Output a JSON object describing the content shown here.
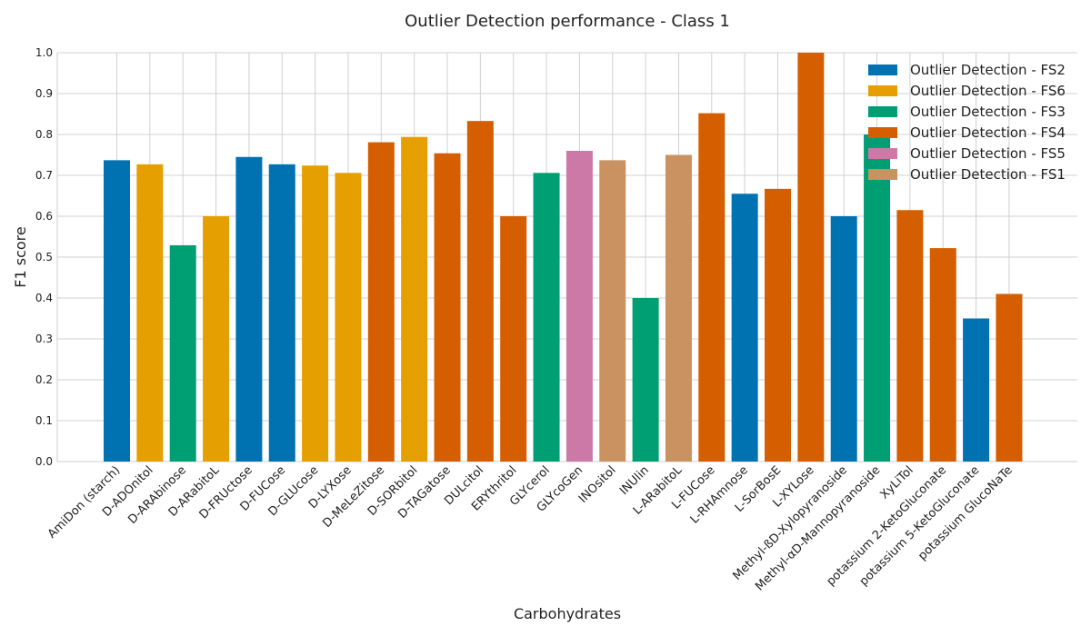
{
  "chart_data": {
    "type": "bar",
    "title": "Outlier Detection performance - Class 1",
    "xlabel": "Carbohydrates",
    "ylabel": "F1 score",
    "ylim": [
      0,
      1.0
    ],
    "yticks": [
      "0.0",
      "0.1",
      "0.2",
      "0.3",
      "0.4",
      "0.5",
      "0.6",
      "0.7",
      "0.8",
      "0.9",
      "1.0"
    ],
    "grid": true,
    "legend_position": "top-right",
    "legend": [
      {
        "name": "Outlier Detection - FS2",
        "color": "#0072B2"
      },
      {
        "name": "Outlier Detection - FS6",
        "color": "#E69F00"
      },
      {
        "name": "Outlier Detection - FS3",
        "color": "#009E73"
      },
      {
        "name": "Outlier Detection - FS4",
        "color": "#D55E00"
      },
      {
        "name": "Outlier Detection - FS5",
        "color": "#CC79A7"
      },
      {
        "name": "Outlier Detection - FS1",
        "color": "#CA9161"
      }
    ],
    "bars": [
      {
        "category": "AmiDon (starch)",
        "value": 0.737,
        "series": 0
      },
      {
        "category": "D-ADOnitol",
        "value": 0.727,
        "series": 1
      },
      {
        "category": "D-ARAbinose",
        "value": 0.529,
        "series": 2
      },
      {
        "category": "D-ARabitoL",
        "value": 0.6,
        "series": 1
      },
      {
        "category": "D-FRUctose",
        "value": 0.745,
        "series": 0
      },
      {
        "category": "D-FUCose",
        "value": 0.727,
        "series": 0
      },
      {
        "category": "D-GLUcose",
        "value": 0.724,
        "series": 1
      },
      {
        "category": "D-LYXose",
        "value": 0.706,
        "series": 1
      },
      {
        "category": "D-MeLeZitose",
        "value": 0.781,
        "series": 3
      },
      {
        "category": "D-SORbitol",
        "value": 0.794,
        "series": 1
      },
      {
        "category": "D-TAGatose",
        "value": 0.754,
        "series": 3
      },
      {
        "category": "DULcitol",
        "value": 0.833,
        "series": 3
      },
      {
        "category": "ERYthritol",
        "value": 0.6,
        "series": 3
      },
      {
        "category": "GLYcerol",
        "value": 0.706,
        "series": 2
      },
      {
        "category": "GLYcoGen",
        "value": 0.76,
        "series": 4
      },
      {
        "category": "INOsitol",
        "value": 0.737,
        "series": 5
      },
      {
        "category": "INUlin",
        "value": 0.4,
        "series": 2
      },
      {
        "category": "L-ARabitoL",
        "value": 0.75,
        "series": 5
      },
      {
        "category": "L-FUCose",
        "value": 0.852,
        "series": 3
      },
      {
        "category": "L-RHAmnose",
        "value": 0.655,
        "series": 0
      },
      {
        "category": "L-SorBosE",
        "value": 0.667,
        "series": 3
      },
      {
        "category": "L-XYLose",
        "value": 1.0,
        "series": 3
      },
      {
        "category": "Methyl-ßD-Xylopyranoside",
        "value": 0.6,
        "series": 0
      },
      {
        "category": "Methyl-αD-Mannopyranoside",
        "value": 0.8,
        "series": 2
      },
      {
        "category": "XyLiTol",
        "value": 0.615,
        "series": 3
      },
      {
        "category": "potassium 2-KetoGluconate",
        "value": 0.522,
        "series": 3
      },
      {
        "category": "potassium 5-KetoGluconate",
        "value": 0.35,
        "series": 0
      },
      {
        "category": "potassium GlucoNaTe",
        "value": 0.41,
        "series": 3
      }
    ]
  }
}
